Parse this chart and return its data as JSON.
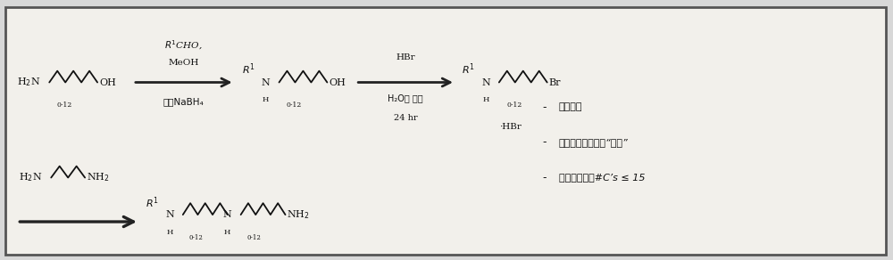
{
  "fig_width": 10.0,
  "fig_height": 2.92,
  "dpi": 100,
  "bg_color": "#d8d8d8",
  "inner_bg": "#f2f0eb",
  "border_color": "#555555",
  "text_color": "#111111",
  "mol1_start": "H₂N",
  "mol1_end": "OH",
  "arrow1_line1": "R¹CHO,",
  "arrow1_line2": "MeOH",
  "arrow1_line3": "然后NaBH₄",
  "mol2_end": "OH",
  "arrow2_line1": "HBr",
  "arrow2_line2": "H₂O， 回流",
  "arrow2_line3": "24 hr",
  "mol3_end": "Br",
  "mol3_salt": "·HBr",
  "reagent_start": "H₂N",
  "reagent_end": "NH₂",
  "mol4_end": "NH₂",
  "subscript": "0-12",
  "bp1": "无保护基",
  "bp2": "需要最少的溶剂，“绿色”",
  "bp3": "在一个方面，#C’s ≤ 15"
}
